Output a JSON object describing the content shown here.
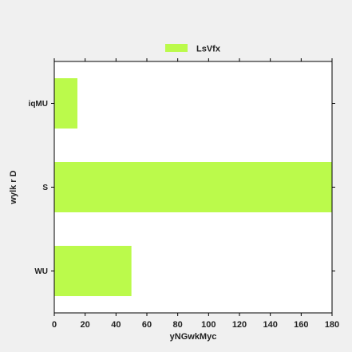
{
  "chart_data": {
    "type": "bar",
    "orientation": "horizontal",
    "categories": [
      "WU",
      "S",
      "iqMU"
    ],
    "series": [
      {
        "name": "LsVfx",
        "values": [
          50,
          180,
          15
        ],
        "color": "#bbfa4b"
      }
    ],
    "xlabel": "yNGwkMyc",
    "ylabel": "wylk r D",
    "xlim": [
      0,
      180
    ],
    "xticks": [
      0,
      20,
      40,
      60,
      80,
      100,
      120,
      140,
      160,
      180
    ],
    "grid": false,
    "legend": "top-center"
  }
}
